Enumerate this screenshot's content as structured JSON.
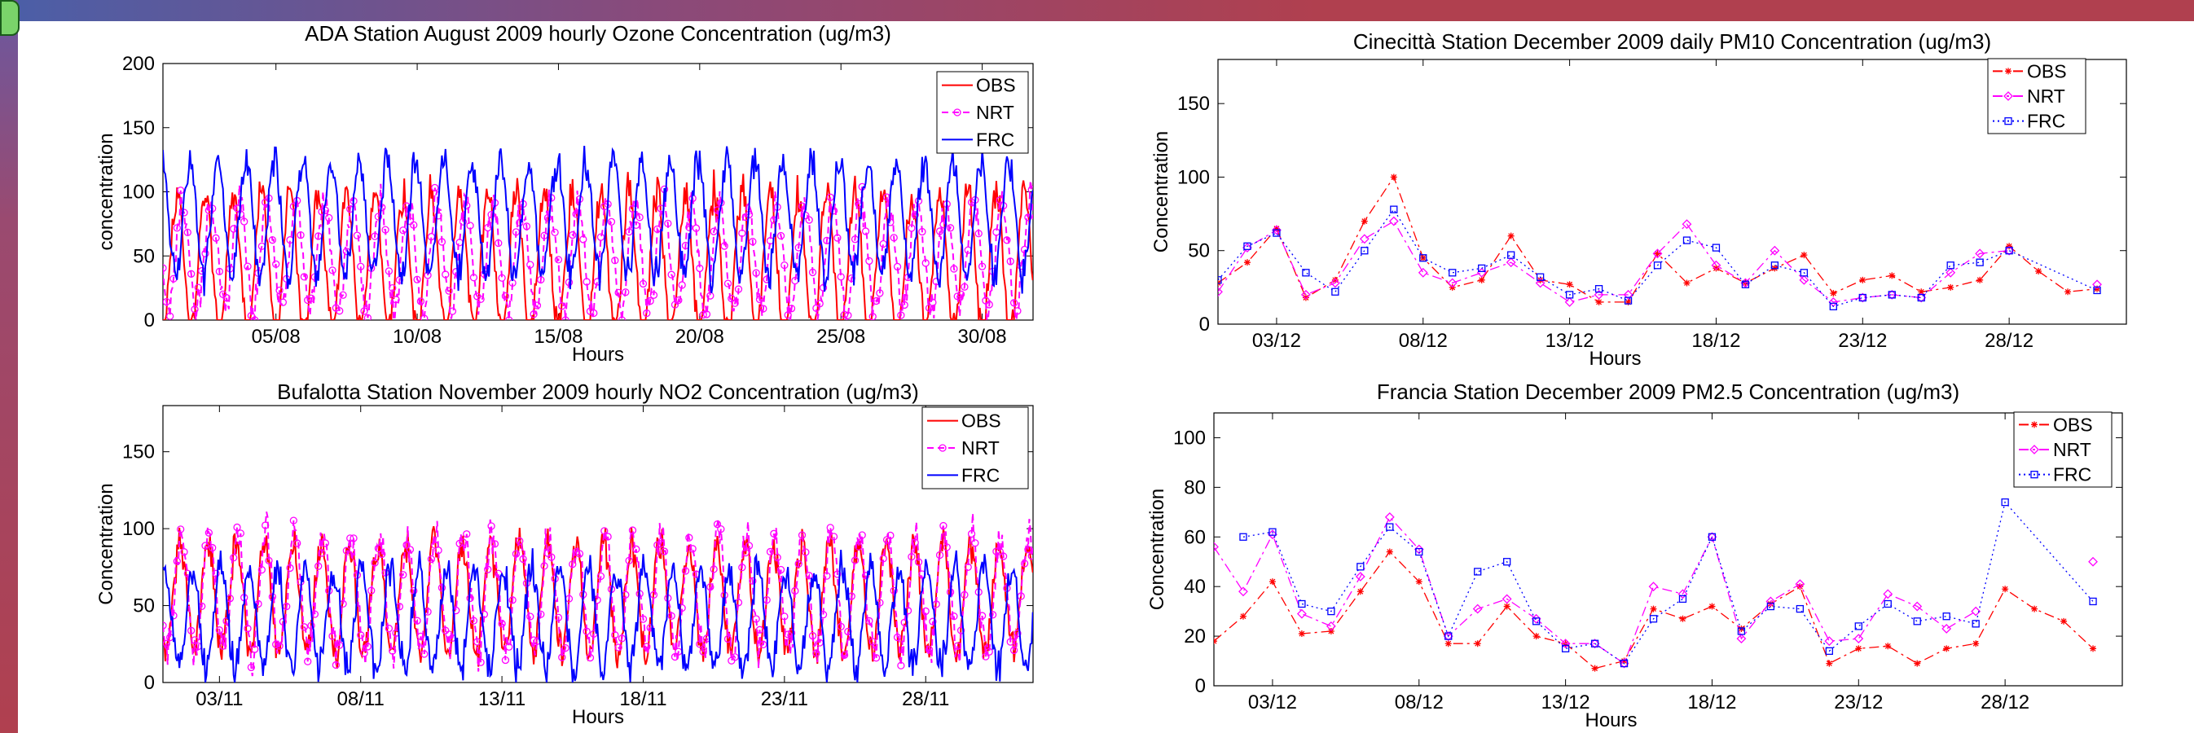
{
  "colors": {
    "obs": "#ff0000",
    "nrt": "#ff00ff",
    "frc": "#0000ff"
  },
  "chart_data": [
    {
      "type": "line",
      "title": "ADA Station August 2009 hourly Ozone Concentration (ug/m3)",
      "xlabel": "Hours",
      "ylabel": "concentration",
      "xlim": [
        1,
        31.8
      ],
      "ylim": [
        0,
        200
      ],
      "yticks": [
        0,
        50,
        100,
        150,
        200
      ],
      "xticks": [
        {
          "x": 5,
          "label": "05/08"
        },
        {
          "x": 10,
          "label": "10/08"
        },
        {
          "x": 15,
          "label": "15/08"
        },
        {
          "x": 20,
          "label": "20/08"
        },
        {
          "x": 25,
          "label": "25/08"
        },
        {
          "x": 30,
          "label": "30/08"
        }
      ],
      "legend": {
        "placement": "top-right",
        "entries": [
          "OBS",
          "NRT",
          "FRC"
        ]
      },
      "grid": false,
      "resolution": "hourly",
      "series": [
        {
          "name": "OBS",
          "style": "solid",
          "marker": "none",
          "mid": 45,
          "amp": 55,
          "phase": 0.0
        },
        {
          "name": "NRT",
          "style": "dashed",
          "marker": "circle",
          "mid": 50,
          "amp": 42,
          "phase": 0.2
        },
        {
          "name": "FRC",
          "style": "solid",
          "marker": "none",
          "mid": 80,
          "amp": 45,
          "phase": 0.45
        }
      ]
    },
    {
      "type": "line",
      "title": "Cinecittà Station December 2009 daily PM10 Concentration (ug/m3)",
      "xlabel": "Hours",
      "ylabel": "Concentration",
      "xlim": [
        1,
        32
      ],
      "ylim": [
        0,
        180
      ],
      "yticks": [
        0,
        50,
        100,
        150
      ],
      "xticks": [
        {
          "x": 3,
          "label": "03/12"
        },
        {
          "x": 8,
          "label": "08/12"
        },
        {
          "x": 13,
          "label": "13/12"
        },
        {
          "x": 18,
          "label": "18/12"
        },
        {
          "x": 23,
          "label": "23/12"
        },
        {
          "x": 28,
          "label": "28/12"
        }
      ],
      "legend": {
        "placement": "top-right",
        "entries": [
          "OBS",
          "NRT",
          "FRC"
        ]
      },
      "grid": false,
      "resolution": "daily",
      "series": [
        {
          "name": "OBS",
          "style": "dashdot",
          "marker": "star",
          "x": [
            1,
            2,
            3,
            4,
            5,
            6,
            7,
            8,
            9,
            10,
            11,
            12,
            13,
            14,
            15,
            16,
            17,
            18,
            19,
            20,
            21,
            22,
            23,
            24,
            25,
            26,
            27,
            28,
            29,
            30,
            31
          ],
          "values": [
            28,
            42,
            65,
            18,
            30,
            70,
            100,
            45,
            25,
            30,
            60,
            30,
            27,
            15,
            15,
            48,
            28,
            38,
            28,
            38,
            47,
            21,
            30,
            33,
            22,
            25,
            30,
            53,
            36,
            22,
            24
          ]
        },
        {
          "name": "NRT",
          "style": "dashdot",
          "marker": "diamond",
          "x": [
            1,
            2,
            3,
            4,
            5,
            6,
            7,
            8,
            9,
            10,
            11,
            12,
            13,
            14,
            15,
            16,
            17,
            18,
            19,
            20,
            21,
            22,
            23,
            24,
            25,
            26,
            27,
            28,
            29,
            30,
            31
          ],
          "values": [
            22,
            52,
            64,
            20,
            28,
            58,
            70,
            35,
            28,
            35,
            42,
            28,
            15,
            20,
            20,
            48,
            68,
            40,
            28,
            50,
            30,
            15,
            18,
            20,
            18,
            35,
            48,
            50,
            null,
            null,
            27
          ]
        },
        {
          "name": "FRC",
          "style": "dotted",
          "marker": "square",
          "x": [
            1,
            2,
            3,
            4,
            5,
            6,
            7,
            8,
            9,
            10,
            11,
            12,
            13,
            14,
            15,
            16,
            17,
            18,
            19,
            20,
            21,
            22,
            23,
            24,
            25,
            26,
            27,
            28,
            31
          ],
          "values": [
            30,
            53,
            62,
            35,
            22,
            50,
            78,
            45,
            35,
            38,
            47,
            32,
            20,
            24,
            16,
            40,
            57,
            52,
            27,
            40,
            35,
            12,
            18,
            20,
            18,
            40,
            42,
            50,
            23
          ]
        }
      ]
    },
    {
      "type": "line",
      "title": "Bufalotta Station November 2009 hourly NO2 Concentration (ug/m3)",
      "xlabel": "Hours",
      "ylabel": "Concentration",
      "xlim": [
        1,
        31.8
      ],
      "ylim": [
        0,
        180
      ],
      "yticks": [
        0,
        50,
        100,
        150
      ],
      "xticks": [
        {
          "x": 3,
          "label": "03/11"
        },
        {
          "x": 8,
          "label": "08/11"
        },
        {
          "x": 13,
          "label": "13/11"
        },
        {
          "x": 18,
          "label": "18/11"
        },
        {
          "x": 23,
          "label": "23/11"
        },
        {
          "x": 28,
          "label": "28/11"
        }
      ],
      "legend": {
        "placement": "top-right",
        "entries": [
          "OBS",
          "NRT",
          "FRC"
        ]
      },
      "grid": false,
      "resolution": "hourly",
      "series": [
        {
          "name": "OBS",
          "style": "solid",
          "marker": "none",
          "mid": 55,
          "amp": 35,
          "phase": 0.1
        },
        {
          "name": "NRT",
          "style": "dashed",
          "marker": "circle",
          "mid": 58,
          "amp": 38,
          "phase": 0.15
        },
        {
          "name": "FRC",
          "style": "solid",
          "marker": "none",
          "mid": 42,
          "amp": 32,
          "phase": 0.55
        }
      ]
    },
    {
      "type": "line",
      "title": "Francia Station December 2009 PM2.5  Concentration (ug/m3)",
      "xlabel": "Hours",
      "ylabel": "Concentration",
      "xlim": [
        1,
        32
      ],
      "ylim": [
        0,
        110
      ],
      "yticks": [
        0,
        20,
        40,
        60,
        80,
        100
      ],
      "xticks": [
        {
          "x": 3,
          "label": "03/12"
        },
        {
          "x": 8,
          "label": "08/12"
        },
        {
          "x": 13,
          "label": "13/12"
        },
        {
          "x": 18,
          "label": "18/12"
        },
        {
          "x": 23,
          "label": "23/12"
        },
        {
          "x": 28,
          "label": "28/12"
        }
      ],
      "legend": {
        "placement": "top-right",
        "entries": [
          "OBS",
          "NRT",
          "FRC"
        ]
      },
      "grid": false,
      "resolution": "daily",
      "series": [
        {
          "name": "OBS",
          "style": "dashdot",
          "marker": "star",
          "x": [
            1,
            2,
            3,
            4,
            5,
            6,
            7,
            8,
            9,
            10,
            11,
            12,
            13,
            14,
            15,
            16,
            17,
            18,
            19,
            20,
            21,
            22,
            23,
            24,
            25,
            26,
            27,
            28,
            29,
            30,
            31
          ],
          "values": [
            18,
            28,
            42,
            21,
            22,
            38,
            54,
            42,
            17,
            17,
            32,
            20,
            17,
            7,
            10,
            31,
            27,
            32,
            23,
            33,
            40,
            9,
            15,
            16,
            9,
            15,
            17,
            39,
            31,
            26,
            15
          ]
        },
        {
          "name": "NRT",
          "style": "dashdot",
          "marker": "diamond",
          "x": [
            1,
            2,
            3,
            4,
            5,
            6,
            7,
            8,
            9,
            10,
            11,
            12,
            13,
            14,
            15,
            16,
            17,
            18,
            19,
            20,
            21,
            22,
            23,
            24,
            25,
            26,
            27,
            28,
            31
          ],
          "values": [
            56,
            38,
            61,
            29,
            24,
            44,
            68,
            55,
            20,
            31,
            35,
            27,
            17,
            17,
            9,
            40,
            37,
            60,
            19,
            34,
            41,
            18,
            19,
            37,
            32,
            23,
            30,
            null,
            50
          ]
        },
        {
          "name": "FRC",
          "style": "dotted",
          "marker": "square",
          "x": [
            1,
            2,
            3,
            4,
            5,
            6,
            7,
            8,
            9,
            10,
            11,
            12,
            13,
            14,
            15,
            16,
            17,
            18,
            19,
            20,
            21,
            22,
            23,
            24,
            25,
            26,
            27,
            28,
            31
          ],
          "values": [
            null,
            60,
            62,
            33,
            30,
            48,
            64,
            54,
            20,
            46,
            50,
            26,
            15,
            17,
            9,
            27,
            35,
            60,
            22,
            32,
            31,
            14,
            24,
            33,
            26,
            28,
            25,
            74,
            34
          ]
        }
      ]
    }
  ]
}
